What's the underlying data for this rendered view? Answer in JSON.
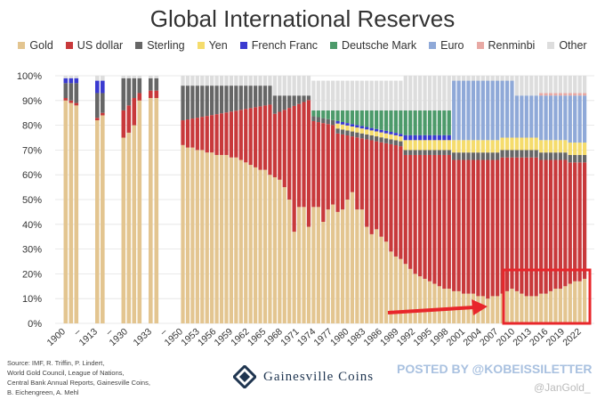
{
  "chart_data": {
    "type": "bar",
    "stacked": true,
    "title": "Global International Reserves",
    "ylim": [
      0,
      100
    ],
    "yticks": [
      "0%",
      "10%",
      "20%",
      "30%",
      "40%",
      "50%",
      "60%",
      "70%",
      "80%",
      "90%",
      "100%"
    ],
    "grid": true,
    "legend_position": "top",
    "series": [
      {
        "name": "Gold",
        "color": "#e3c590"
      },
      {
        "name": "US dollar",
        "color": "#c8393b"
      },
      {
        "name": "Sterling",
        "color": "#666666"
      },
      {
        "name": "Yen",
        "color": "#f5dc6c"
      },
      {
        "name": "French Franc",
        "color": "#3a3ad0"
      },
      {
        "name": "Deutsche Mark",
        "color": "#4c9a6a"
      },
      {
        "name": "Euro",
        "color": "#8fa9d8"
      },
      {
        "name": "Renminbi",
        "color": "#e8a9a4"
      },
      {
        "name": "Other",
        "color": "#dddddd"
      }
    ],
    "xticks": [
      "1900",
      "–",
      "1913",
      "–",
      "1930",
      "1933",
      "–",
      "1950",
      "1953",
      "1956",
      "1959",
      "1962",
      "1965",
      "1968",
      "1971",
      "1974",
      "1977",
      "1980",
      "1983",
      "1986",
      "1989",
      "1992",
      "1995",
      "1998",
      "2001",
      "2004",
      "2007",
      "2010",
      "2013",
      "2016",
      "2019",
      "2022"
    ],
    "gold_share": {
      "early": [
        90,
        89,
        88,
        82,
        84,
        75,
        77,
        80,
        90,
        91,
        91
      ],
      "modern": [
        72,
        71,
        71,
        70,
        70,
        69,
        69,
        68,
        68,
        68,
        67,
        67,
        66,
        65,
        64,
        63,
        62,
        62,
        60,
        59,
        58,
        55,
        50,
        37,
        47,
        47,
        39,
        47,
        47,
        41,
        46,
        48,
        45,
        46,
        50,
        53,
        46,
        46,
        39,
        36,
        38,
        35,
        33,
        29,
        27,
        26,
        24,
        22,
        20,
        19,
        18,
        17,
        16,
        15,
        14,
        14,
        13,
        13,
        12,
        12,
        12,
        11,
        11,
        10,
        11,
        11,
        12,
        13,
        14,
        13,
        12,
        11,
        11,
        11,
        12,
        12,
        13,
        14,
        14,
        15,
        16,
        17,
        17,
        18
      ]
    }
  },
  "annotations": {
    "source": [
      "Source: IMF, R. Triffin, P. Lindert,",
      "World Gold Council, League of Nations,",
      "Central Bank Annual Reports, Gainesville Coins,",
      "B. Eichengreen, A. Mehl"
    ],
    "brand": "Gainesville Coins",
    "posted_by": "POSTED BY @KOBEISSILETTER",
    "handle": "@JanGold_",
    "highlight_color": "#e8262b"
  }
}
